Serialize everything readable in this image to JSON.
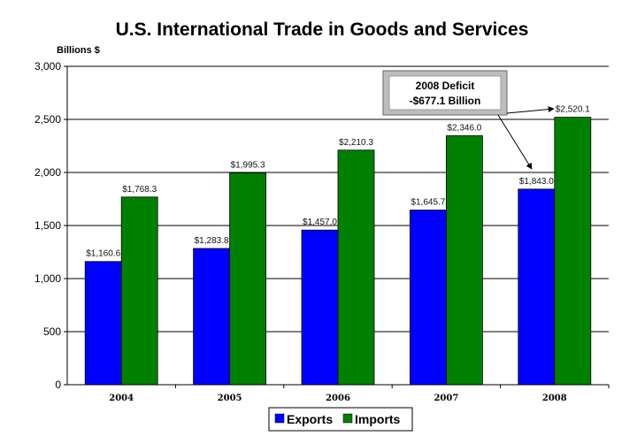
{
  "chart_data": {
    "type": "bar",
    "title": "U.S. International Trade in Goods and Services",
    "ylabel": "Billions $",
    "xlabel": "",
    "ylim": [
      0,
      3000
    ],
    "yticks": [
      0,
      500,
      1000,
      1500,
      2000,
      2500,
      3000
    ],
    "ytick_labels": [
      "0",
      "500",
      "1,000",
      "1,500",
      "2,000",
      "2,500",
      "3,000"
    ],
    "grid": true,
    "legend": "bottom",
    "categories": [
      "2004",
      "2005",
      "2006",
      "2007",
      "2008"
    ],
    "series": [
      {
        "name": "Exports",
        "color": "#0000ff",
        "values": [
          1160.6,
          1283.8,
          1457.0,
          1645.7,
          1843.0
        ],
        "labels": [
          "$1,160.6",
          "$1,283.8",
          "$1,457.0",
          "$1,645.7",
          "$1,843.0"
        ]
      },
      {
        "name": "Imports",
        "color": "#008000",
        "values": [
          1768.3,
          1995.3,
          2210.3,
          2346.0,
          2520.1
        ],
        "labels": [
          "$1,768.3",
          "$1,995.3",
          "$2,210.3",
          "$2,346.0",
          "$2,520.1"
        ]
      }
    ],
    "annotation": {
      "line1": "2008 Deficit",
      "line2": "-$677.1 Billion",
      "value": -677.1,
      "category": "2008"
    }
  }
}
